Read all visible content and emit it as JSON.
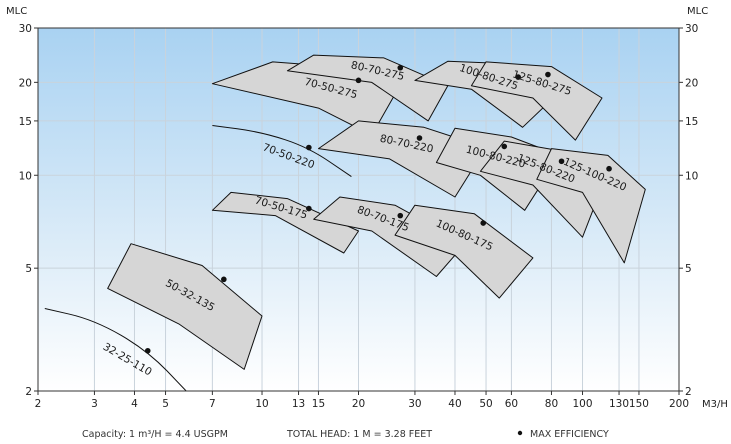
{
  "chart_data": {
    "type": "scatter",
    "x_scale": "log",
    "y_scale": "log",
    "xlim": [
      2,
      200
    ],
    "ylim": [
      2,
      30
    ],
    "grid": true,
    "x_ticks": [
      "2",
      "3",
      "4",
      "5",
      "7",
      "10",
      "13",
      "15",
      "20",
      "30",
      "40",
      "50",
      "60",
      "80",
      "100",
      "130",
      "150",
      "200"
    ],
    "y_ticks": [
      "2",
      "5",
      "10",
      "15",
      "20",
      "30"
    ],
    "y_axis_title_left": "MLC",
    "y_axis_title_right": "MLC",
    "x_unit_label": "M3/H",
    "colors": {
      "band_fill": "#d6d6d6",
      "band_stroke": "#111111",
      "bg_top": "#a9d2f2",
      "bg_bottom": "#ffffff",
      "grid": "#c9d3dc"
    },
    "curves": [
      {
        "name": "32-25-110",
        "type": "line",
        "dot": [
          4.4,
          2.7
        ],
        "points": [
          [
            2.1,
            3.7
          ],
          [
            3,
            3.4
          ],
          [
            4.4,
            2.7
          ],
          [
            5.8,
            2.0
          ]
        ]
      },
      {
        "name": "70-50-220",
        "type": "line",
        "dot": [
          14,
          12.3
        ],
        "points": [
          [
            7,
            14.5
          ],
          [
            10,
            13.8
          ],
          [
            14,
            12.3
          ],
          [
            19,
            9.9
          ]
        ]
      },
      {
        "name": "50-32-135",
        "type": "band",
        "dot": [
          7.6,
          4.6
        ],
        "top": [
          [
            3.9,
            6
          ],
          [
            6.5,
            5.1
          ],
          [
            10,
            3.5
          ]
        ],
        "bottom": [
          [
            3.3,
            4.3
          ],
          [
            5.5,
            3.3
          ],
          [
            8.8,
            2.35
          ]
        ]
      },
      {
        "name": "70-50-275",
        "type": "band",
        "dot": [
          20,
          20.3
        ],
        "top": [
          [
            10.8,
            23.3
          ],
          [
            18,
            22.4
          ],
          [
            26,
            18.3
          ]
        ],
        "bottom": [
          [
            7,
            19.8
          ],
          [
            15,
            16.5
          ],
          [
            22,
            13.5
          ]
        ]
      },
      {
        "name": "80-70-275",
        "type": "band",
        "dot": [
          27,
          22.3
        ],
        "top": [
          [
            14.5,
            24.5
          ],
          [
            24,
            24
          ],
          [
            38,
            19.5
          ]
        ],
        "bottom": [
          [
            12,
            21.8
          ],
          [
            22,
            20
          ],
          [
            33,
            15
          ]
        ]
      },
      {
        "name": "100-80-275",
        "type": "band",
        "dot": [
          63,
          20.8
        ],
        "top": [
          [
            38,
            23.4
          ],
          [
            58,
            23
          ],
          [
            82,
            18
          ]
        ],
        "bottom": [
          [
            30,
            20.3
          ],
          [
            45,
            19
          ],
          [
            65,
            14.3
          ]
        ]
      },
      {
        "name": "125-80-275",
        "type": "band",
        "dot": [
          78,
          21.2
        ],
        "top": [
          [
            50,
            23.3
          ],
          [
            80,
            22.5
          ],
          [
            115,
            17.8
          ]
        ],
        "bottom": [
          [
            45,
            19.5
          ],
          [
            70,
            17.8
          ],
          [
            95,
            13
          ]
        ]
      },
      {
        "name": "80-70-220",
        "type": "band",
        "dot": [
          31,
          13.2
        ],
        "top": [
          [
            20,
            15
          ],
          [
            32,
            14.3
          ],
          [
            50,
            12.3
          ]
        ],
        "bottom": [
          [
            15,
            12.2
          ],
          [
            25,
            11.3
          ],
          [
            40,
            8.5
          ]
        ]
      },
      {
        "name": "100-80-220",
        "type": "band",
        "dot": [
          57,
          12.4
        ],
        "top": [
          [
            40,
            14.2
          ],
          [
            60,
            13.3
          ],
          [
            85,
            11.6
          ]
        ],
        "bottom": [
          [
            35,
            11
          ],
          [
            48,
            10
          ],
          [
            66,
            7.7
          ]
        ]
      },
      {
        "name": "125-80-220",
        "type": "band",
        "dot": [
          86,
          11.1
        ],
        "top": [
          [
            57,
            12.9
          ],
          [
            85,
            12
          ],
          [
            117,
            9.6
          ]
        ],
        "bottom": [
          [
            48,
            10.3
          ],
          [
            70,
            9.3
          ],
          [
            100,
            6.3
          ]
        ]
      },
      {
        "name": "125-100-220",
        "type": "band",
        "dot": [
          121,
          10.5
        ],
        "top": [
          [
            80,
            12.2
          ],
          [
            120,
            11.6
          ],
          [
            157,
            9
          ]
        ],
        "bottom": [
          [
            72,
            9.7
          ],
          [
            100,
            8.8
          ],
          [
            135,
            5.2
          ]
        ]
      },
      {
        "name": "70-50-175",
        "type": "band",
        "dot": [
          14,
          7.8
        ],
        "top": [
          [
            8,
            8.8
          ],
          [
            12,
            8.4
          ],
          [
            20,
            6.6
          ]
        ],
        "bottom": [
          [
            7,
            7.7
          ],
          [
            11,
            7.4
          ],
          [
            18,
            5.6
          ]
        ]
      },
      {
        "name": "80-70-175",
        "type": "band",
        "dot": [
          27,
          7.4
        ],
        "top": [
          [
            17.5,
            8.5
          ],
          [
            26,
            8
          ],
          [
            43,
            6
          ]
        ],
        "bottom": [
          [
            14.5,
            7.2
          ],
          [
            22,
            6.6
          ],
          [
            35,
            4.7
          ]
        ]
      },
      {
        "name": "100-80-175",
        "type": "band",
        "dot": [
          49,
          7
        ],
        "top": [
          [
            30,
            8
          ],
          [
            46,
            7.5
          ],
          [
            70,
            5.4
          ]
        ],
        "bottom": [
          [
            26,
            6.4
          ],
          [
            40,
            5.5
          ],
          [
            55,
            4
          ]
        ]
      }
    ]
  },
  "footer": {
    "capacity": "Capacity: 1 m³/H = 4.4 USGPM",
    "head": "TOTAL HEAD: 1 M = 3.28 FEET",
    "max_eff": "MAX EFFICIENCY"
  }
}
